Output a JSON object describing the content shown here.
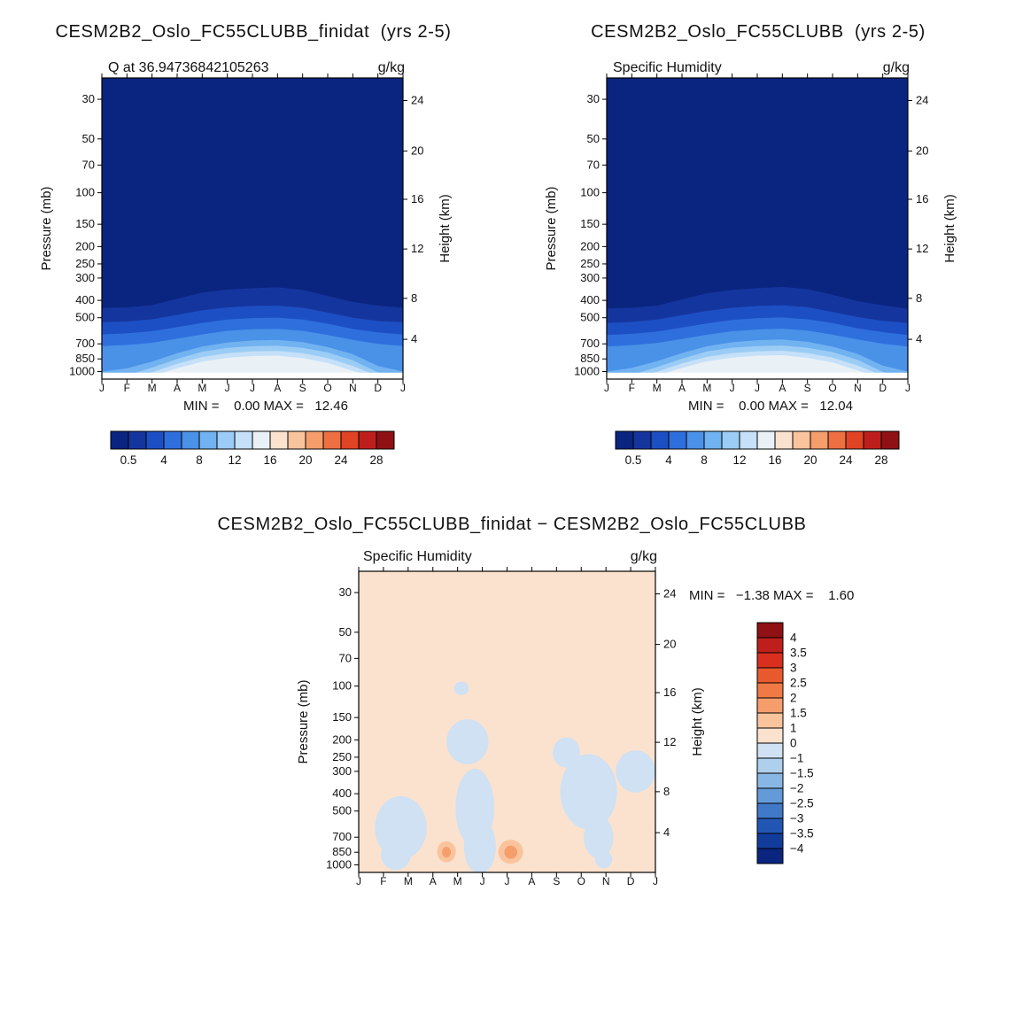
{
  "page": {
    "background": "#ffffff"
  },
  "chart_data": [
    {
      "type": "contour",
      "title": "CESM2B2_Oslo_FC55CLUBB_finidat  (yrs 2-5)",
      "subtitle_left": "Q at 36.94736842105263",
      "subtitle_right": "g/kg",
      "ylabel": "Pressure (mb)",
      "y2label": "Height (km)",
      "x_tick_labels": [
        "J",
        "F",
        "M",
        "A",
        "M",
        "J",
        "J",
        "A",
        "S",
        "O",
        "N",
        "D",
        "J"
      ],
      "pressure_ticks": [
        30,
        50,
        70,
        100,
        150,
        200,
        250,
        300,
        400,
        500,
        700,
        850,
        1000
      ],
      "height_ticks": [
        24,
        20,
        16,
        12,
        8,
        4
      ],
      "height_tick_f": [
        0.075,
        0.243,
        0.403,
        0.568,
        0.732,
        0.868
      ],
      "min": 0.0,
      "max": 12.46,
      "stats_text": "MIN =    0.00 MAX =   12.46",
      "base_color": "#0a2580",
      "white_strip_p": 1015,
      "bands": [
        {
          "color": "#15359e",
          "p": [
            440,
            438,
            425,
            392,
            362,
            348,
            342,
            338,
            350,
            378,
            408,
            428,
            440
          ]
        },
        {
          "color": "#1d4fc4",
          "p": [
            530,
            525,
            510,
            482,
            455,
            438,
            430,
            428,
            440,
            468,
            500,
            522,
            530
          ]
        },
        {
          "color": "#2f6fdd",
          "p": [
            620,
            612,
            595,
            565,
            535,
            512,
            502,
            500,
            512,
            540,
            578,
            605,
            620
          ]
        },
        {
          "color": "#4a91e8",
          "p": [
            720,
            710,
            690,
            655,
            620,
            592,
            580,
            578,
            592,
            625,
            665,
            700,
            720
          ]
        },
        {
          "color": "#71b2f0",
          "p": [
            1000,
            960,
            880,
            790,
            725,
            688,
            670,
            665,
            685,
            730,
            800,
            930,
            1000
          ]
        },
        {
          "color": "#9bccf5",
          "p": [
            1100,
            1050,
            950,
            850,
            775,
            738,
            722,
            718,
            738,
            782,
            865,
            1010,
            1100
          ]
        },
        {
          "color": "#c5e0f8",
          "p": [
            1100,
            1080,
            1010,
            905,
            830,
            790,
            772,
            768,
            790,
            840,
            930,
            1060,
            1100
          ]
        },
        {
          "color": "#e9f1f6",
          "p": [
            1100,
            1100,
            1060,
            960,
            880,
            838,
            818,
            815,
            840,
            895,
            990,
            1100,
            1100
          ]
        }
      ],
      "colorbar": {
        "labels": [
          "0.5",
          "4",
          "8",
          "12",
          "16",
          "20",
          "24",
          "28"
        ],
        "colors": [
          "#0a2580",
          "#15359e",
          "#1d4fc4",
          "#2f6fdd",
          "#4a91e8",
          "#71b2f0",
          "#9bccf5",
          "#c5e0f8",
          "#e9f1f6",
          "#fbe2cf",
          "#f9c49c",
          "#f59e6c",
          "#ee6f42",
          "#e04425",
          "#bf1f1c",
          "#8f1113"
        ]
      }
    },
    {
      "type": "contour",
      "title": "CESM2B2_Oslo_FC55CLUBB  (yrs 2-5)",
      "subtitle_left": "Specific Humidity",
      "subtitle_right": "g/kg",
      "ylabel": "Pressure (mb)",
      "y2label": "Height (km)",
      "x_tick_labels": [
        "J",
        "F",
        "M",
        "A",
        "M",
        "J",
        "J",
        "A",
        "S",
        "O",
        "N",
        "D",
        "J"
      ],
      "pressure_ticks": [
        30,
        50,
        70,
        100,
        150,
        200,
        250,
        300,
        400,
        500,
        700,
        850,
        1000
      ],
      "height_ticks": [
        24,
        20,
        16,
        12,
        8,
        4
      ],
      "height_tick_f": [
        0.075,
        0.243,
        0.403,
        0.568,
        0.732,
        0.868
      ],
      "min": 0.0,
      "max": 12.04,
      "stats_text": "MIN =    0.00 MAX =   12.04",
      "base_color": "#0a2580",
      "white_strip_p": 1015,
      "bands": [
        {
          "color": "#15359e",
          "p": [
            445,
            440,
            428,
            395,
            365,
            350,
            342,
            336,
            346,
            372,
            404,
            426,
            445
          ]
        },
        {
          "color": "#1d4fc4",
          "p": [
            535,
            528,
            512,
            485,
            458,
            440,
            430,
            426,
            437,
            464,
            496,
            520,
            535
          ]
        },
        {
          "color": "#2f6fdd",
          "p": [
            625,
            615,
            598,
            568,
            538,
            515,
            503,
            498,
            510,
            536,
            574,
            602,
            625
          ]
        },
        {
          "color": "#4a91e8",
          "p": [
            725,
            712,
            692,
            658,
            622,
            595,
            582,
            576,
            590,
            622,
            662,
            698,
            725
          ]
        },
        {
          "color": "#71b2f0",
          "p": [
            1000,
            955,
            875,
            788,
            722,
            686,
            668,
            662,
            682,
            726,
            796,
            926,
            1000
          ]
        },
        {
          "color": "#9bccf5",
          "p": [
            1100,
            1045,
            945,
            848,
            772,
            736,
            720,
            715,
            736,
            778,
            860,
            1005,
            1100
          ]
        },
        {
          "color": "#c5e0f8",
          "p": [
            1100,
            1075,
            1005,
            900,
            828,
            788,
            770,
            765,
            788,
            836,
            925,
            1055,
            1100
          ]
        },
        {
          "color": "#e9f1f6",
          "p": [
            1100,
            1100,
            1055,
            955,
            876,
            835,
            815,
            810,
            838,
            890,
            985,
            1100,
            1100
          ]
        }
      ],
      "colorbar": {
        "labels": [
          "0.5",
          "4",
          "8",
          "12",
          "16",
          "20",
          "24",
          "28"
        ],
        "colors": [
          "#0a2580",
          "#15359e",
          "#1d4fc4",
          "#2f6fdd",
          "#4a91e8",
          "#71b2f0",
          "#9bccf5",
          "#c5e0f8",
          "#e9f1f6",
          "#fbe2cf",
          "#f9c49c",
          "#f59e6c",
          "#ee6f42",
          "#e04425",
          "#bf1f1c",
          "#8f1113"
        ]
      }
    },
    {
      "type": "contour-diff",
      "title": "CESM2B2_Oslo_FC55CLUBB_finidat − CESM2B2_Oslo_FC55CLUBB",
      "subtitle_left": "Specific Humidity",
      "subtitle_right": "g/kg",
      "ylabel": "Pressure (mb)",
      "y2label": "Height (km)",
      "x_tick_labels": [
        "J",
        "F",
        "M",
        "A",
        "M",
        "J",
        "J",
        "A",
        "S",
        "O",
        "N",
        "D",
        "J"
      ],
      "pressure_ticks": [
        30,
        50,
        70,
        100,
        150,
        200,
        250,
        300,
        400,
        500,
        700,
        850,
        1000
      ],
      "height_ticks": [
        24,
        20,
        16,
        12,
        8,
        4
      ],
      "height_tick_f": [
        0.075,
        0.243,
        0.403,
        0.568,
        0.732,
        0.868
      ],
      "min": -1.38,
      "max": 1.6,
      "stats_text": "MIN =   −1.38 MAX =    1.60",
      "bg_color": "#fbe2cf",
      "blobs": [
        {
          "m": 1.7,
          "p": 620,
          "rm": 1.05,
          "rf": 0.105,
          "color": "#cfe1f3"
        },
        {
          "m": 1.5,
          "p": 880,
          "rm": 0.6,
          "rf": 0.05,
          "color": "#cfe1f3"
        },
        {
          "m": 4.7,
          "p": 480,
          "rm": 0.78,
          "rf": 0.13,
          "color": "#cfe1f3"
        },
        {
          "m": 4.9,
          "p": 790,
          "rm": 0.65,
          "rf": 0.09,
          "color": "#cfe1f3"
        },
        {
          "m": 4.4,
          "p": 205,
          "rm": 0.85,
          "rf": 0.075,
          "color": "#cfe1f3"
        },
        {
          "m": 4.15,
          "p": 103,
          "rm": 0.3,
          "rf": 0.022,
          "color": "#cfe1f3"
        },
        {
          "m": 8.4,
          "p": 235,
          "rm": 0.55,
          "rf": 0.05,
          "color": "#cfe1f3"
        },
        {
          "m": 9.3,
          "p": 390,
          "rm": 1.15,
          "rf": 0.125,
          "color": "#cfe1f3"
        },
        {
          "m": 9.7,
          "p": 700,
          "rm": 0.6,
          "rf": 0.07,
          "color": "#cfe1f3"
        },
        {
          "m": 11.2,
          "p": 300,
          "rm": 0.8,
          "rf": 0.07,
          "color": "#cfe1f3"
        },
        {
          "m": 9.9,
          "p": 930,
          "rm": 0.35,
          "rf": 0.03,
          "color": "#cfe1f3"
        },
        {
          "m": 3.55,
          "p": 845,
          "rm": 0.38,
          "rf": 0.035,
          "color": "#f9c49c"
        },
        {
          "m": 6.15,
          "p": 845,
          "rm": 0.5,
          "rf": 0.04,
          "color": "#f9c49c"
        },
        {
          "m": 6.15,
          "p": 850,
          "rm": 0.26,
          "rf": 0.022,
          "color": "#f59e6c"
        },
        {
          "m": 3.55,
          "p": 850,
          "rm": 0.18,
          "rf": 0.018,
          "color": "#f59e6c"
        }
      ],
      "colorbar": {
        "labels": [
          "4",
          "3.5",
          "3",
          "2.5",
          "2",
          "1.5",
          "1",
          "0",
          "−1",
          "−1.5",
          "−2",
          "−2.5",
          "−3",
          "−3.5",
          "−4"
        ],
        "colors": [
          "#8f1113",
          "#bf1f1c",
          "#d92f1e",
          "#e85a2e",
          "#f07a45",
          "#f59e6c",
          "#f9c49c",
          "#fbe2cf",
          "#cfe1f3",
          "#aed0ec",
          "#89b7e5",
          "#639ad8",
          "#4179c9",
          "#2256b5",
          "#123c9c",
          "#0a2580"
        ]
      }
    }
  ]
}
